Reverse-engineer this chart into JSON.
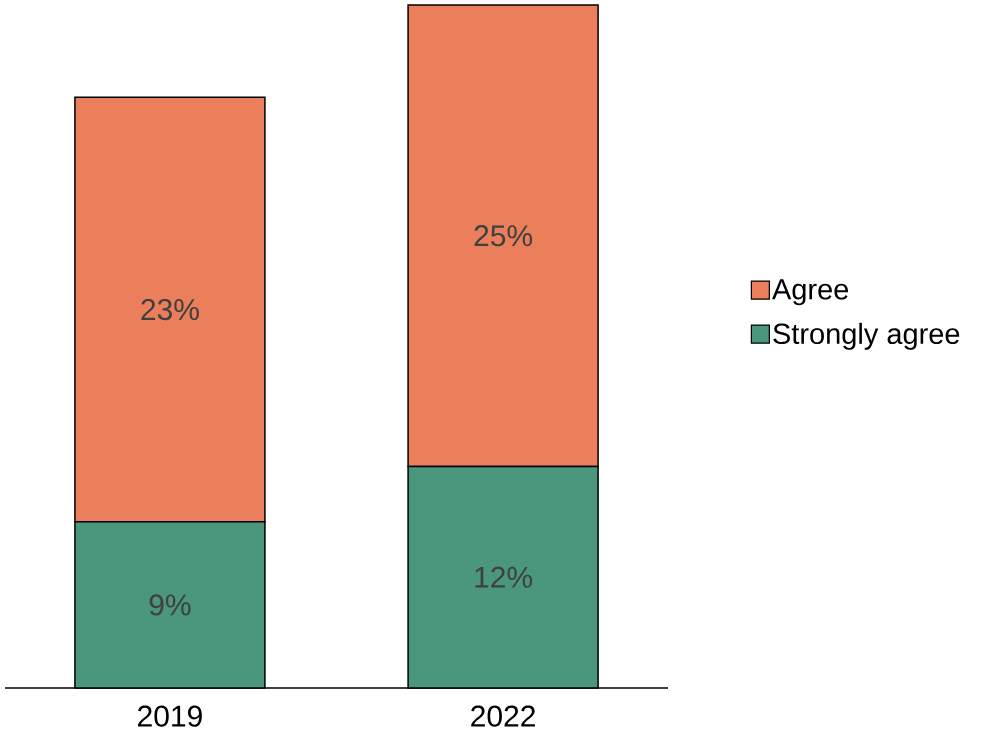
{
  "chart_data": {
    "type": "bar",
    "stacked": true,
    "categories": [
      "2019",
      "2022"
    ],
    "series": [
      {
        "name": "Strongly agree",
        "color": "#4a977e",
        "values": [
          9,
          12
        ],
        "value_labels": [
          "9%",
          "12%"
        ]
      },
      {
        "name": "Agree",
        "color": "#ec7f5b",
        "values": [
          23,
          25
        ],
        "value_labels": [
          "23%",
          "25%"
        ]
      }
    ],
    "legend": "right"
  }
}
